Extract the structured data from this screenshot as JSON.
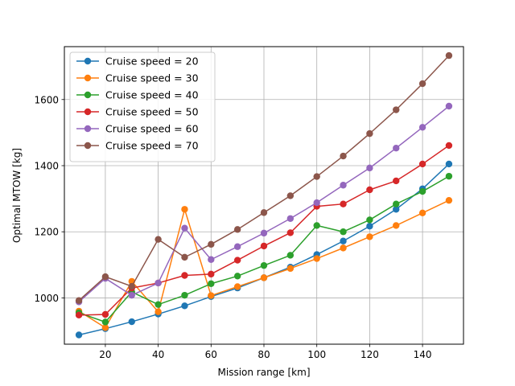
{
  "chart_data": {
    "type": "line",
    "title": "",
    "xlabel": "Mission range [km]",
    "ylabel": "Optimal MTOW [kg]",
    "xlim": [
      4.5,
      155.5
    ],
    "ylim": [
      860,
      1760
    ],
    "xticks": [
      20,
      40,
      60,
      80,
      100,
      120,
      140
    ],
    "yticks": [
      1000,
      1200,
      1400,
      1600
    ],
    "grid": true,
    "legend_position": "top-left",
    "x": [
      10,
      20,
      30,
      40,
      50,
      60,
      70,
      80,
      90,
      100,
      110,
      120,
      130,
      140,
      150
    ],
    "series": [
      {
        "name": "Cruise speed = 20",
        "color": "#1f77b4",
        "values": [
          888,
          907,
          928,
          951,
          976,
          1004,
          1030,
          1061,
          1093,
          1131,
          1172,
          1217,
          1268,
          1330,
          1405
        ]
      },
      {
        "name": "Cruise speed = 30",
        "color": "#ff7f0e",
        "values": [
          960,
          910,
          1050,
          958,
          1268,
          1007,
          1034,
          1061,
          1089,
          1119,
          1151,
          1185,
          1219,
          1257,
          1295
        ]
      },
      {
        "name": "Cruise speed = 40",
        "color": "#2ca02c",
        "values": [
          955,
          927,
          1018,
          980,
          1008,
          1043,
          1066,
          1098,
          1129,
          1219,
          1200,
          1236,
          1284,
          1322,
          1368
        ]
      },
      {
        "name": "Cruise speed = 50",
        "color": "#d62728",
        "values": [
          948,
          950,
          1030,
          1045,
          1068,
          1072,
          1114,
          1157,
          1197,
          1277,
          1284,
          1327,
          1354,
          1405,
          1461
        ]
      },
      {
        "name": "Cruise speed = 60",
        "color": "#9467bd",
        "values": [
          988,
          1059,
          1008,
          1045,
          1211,
          1116,
          1155,
          1196,
          1240,
          1288,
          1341,
          1393,
          1453,
          1516,
          1580
        ]
      },
      {
        "name": "Cruise speed = 70",
        "color": "#8c564b",
        "values": [
          992,
          1064,
          1035,
          1177,
          1123,
          1162,
          1207,
          1258,
          1309,
          1367,
          1429,
          1497,
          1569,
          1648,
          1733
        ]
      }
    ]
  }
}
